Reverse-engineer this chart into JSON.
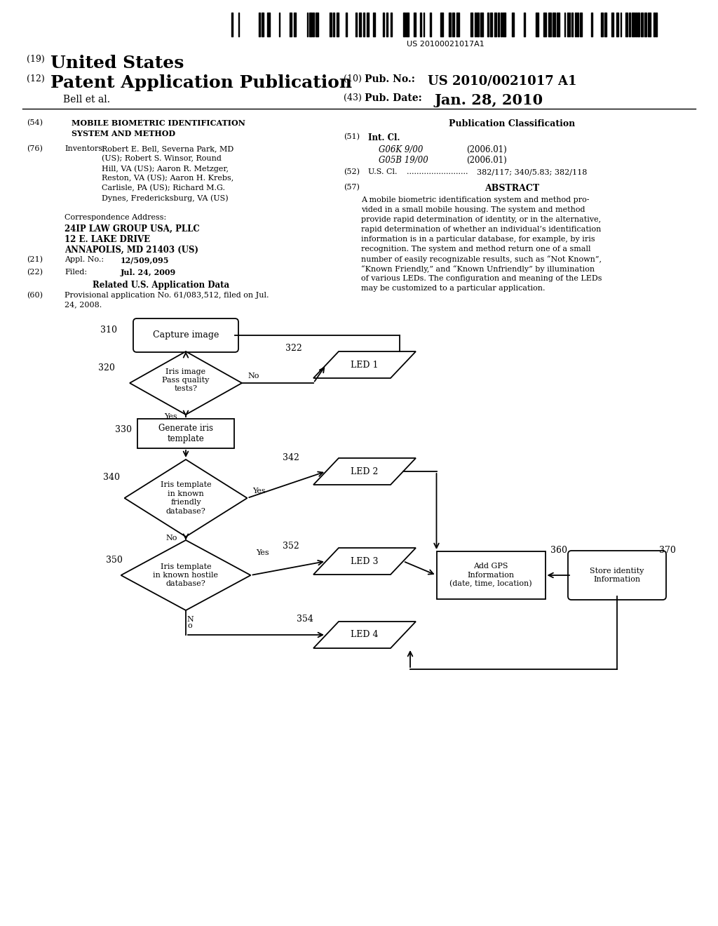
{
  "bg_color": "#ffffff",
  "barcode_text": "US 20100021017A1",
  "title_line1": "(19) United States",
  "title_line2": "(12) Patent Application Publication",
  "pub_no_label": "(10)  Pub. No.:",
  "pub_no_value": "US 2010/0021017 A1",
  "pub_date_label": "(43)  Pub. Date:",
  "pub_date_value": "Jan. 28, 2010",
  "applicant": "Bell et al.",
  "section54_label": "(54)",
  "section54_text": "MOBILE BIOMETRIC IDENTIFICATION\nSYSTEM AND METHOD",
  "section76_label": "(76)",
  "section76_title": "Inventors:",
  "section76_inventors": "Robert E. Bell, Severna Park, MD\n(US); Robert S. Winsor, Round\nHill, VA (US); Aaron R. Metzger,\nReston, VA (US); Aaron H. Krebs,\nCarlisle, PA (US); Richard M.G.\nDynes, Fredericksburg, VA (US)",
  "corr_header": "Correspondence Address:",
  "corr_line1": "24IP LAW GROUP USA, PLLC",
  "corr_line2": "12 E. LAKE DRIVE",
  "corr_line3": "ANNAPOLIS, MD 21403 (US)",
  "section21_label": "(21)",
  "section21_title": "Appl. No.:",
  "section21_value": "12/509,095",
  "section22_label": "(22)",
  "section22_title": "Filed:",
  "section22_value": "Jul. 24, 2009",
  "related_title": "Related U.S. Application Data",
  "section60_label": "(60)",
  "section60_text": "Provisional application No. 61/083,512, filed on Jul.\n24, 2008.",
  "pub_class_title": "Publication Classification",
  "int_cl_label": "(51)",
  "int_cl_title": "Int. Cl.",
  "int_cl_1_code": "G06K 9/00",
  "int_cl_1_year": "(2006.01)",
  "int_cl_2_code": "G05B 19/00",
  "int_cl_2_year": "(2006.01)",
  "us_cl_label": "(52)",
  "us_cl_title": "U.S. Cl.",
  "us_cl_dots": ".........................",
  "us_cl_value": "382/117; 340/5.83; 382/118",
  "abstract_label": "(57)",
  "abstract_title": "ABSTRACT",
  "abstract_lines": [
    "A mobile biometric identification system and method pro-",
    "vided in a small mobile housing. The system and method",
    "provide rapid determination of identity, or in the alternative,",
    "rapid determination of whether an individual’s identification",
    "information is in a particular database, for example, by iris",
    "recognition. The system and method return one of a small",
    "number of easily recognizable results, such as “Not Known”,",
    "“Known Friendly,” and “Known Unfriendly” by illumination",
    "of various LEDs. The configuration and meaning of the LEDs",
    "may be customized to a particular application."
  ],
  "node_310_label": "Capture image",
  "node_320_label": "Iris image\nPass quality\ntests?",
  "node_330_label": "Generate iris\ntemplate",
  "node_340_label": "Iris template\nin known\nfriendly\ndatabase?",
  "node_342_label": "LED 2",
  "node_322_label": "LED 1",
  "node_350_label": "Iris template\nin known hostile\ndatabase?",
  "node_352_label": "LED 3",
  "node_354_label": "LED 4",
  "node_360_label": "Add GPS\nInformation\n(date, time, location)",
  "node_370_label": "Store identity\nInformation",
  "label_310": "310",
  "label_320": "320",
  "label_330": "330",
  "label_340": "340",
  "label_342": "342",
  "label_322": "322",
  "label_350": "350",
  "label_352": "352",
  "label_354": "354",
  "label_360": "360",
  "label_370": "370"
}
